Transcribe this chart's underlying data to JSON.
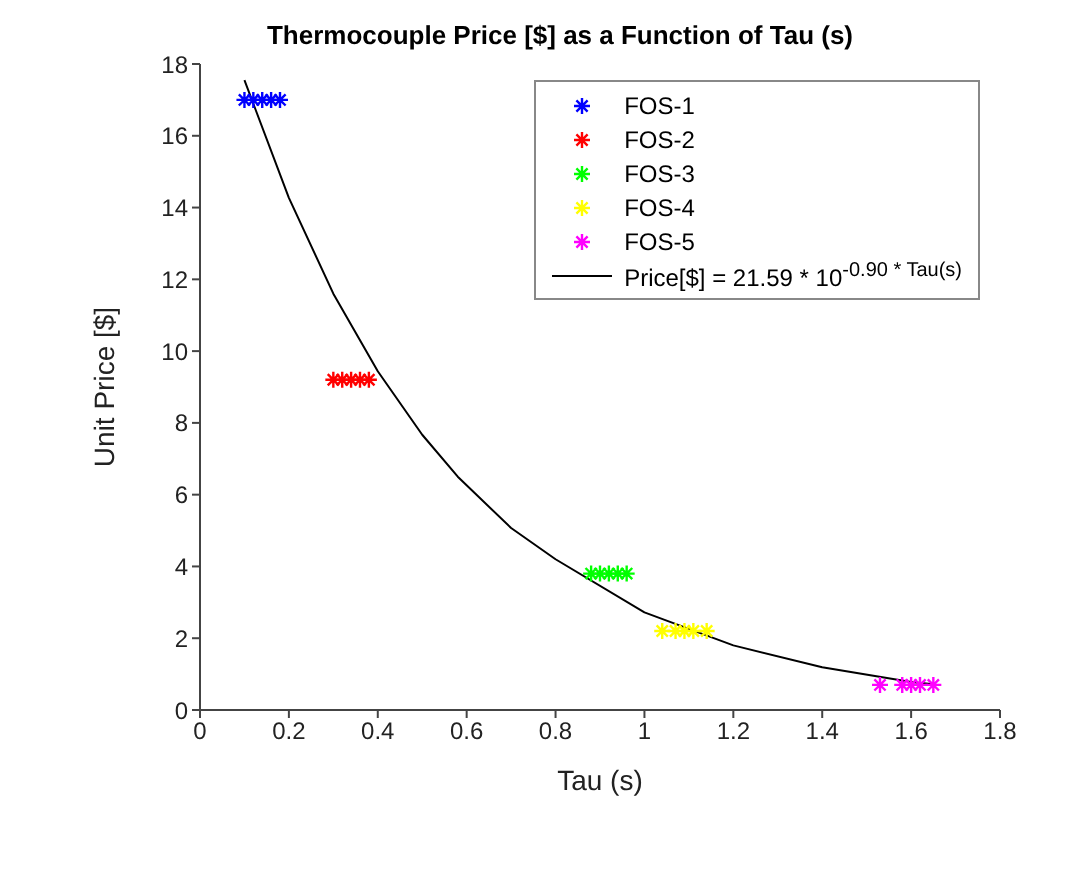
{
  "chart_data": {
    "type": "scatter",
    "title": "Thermocouple Price [$] as a Function of Tau (s)",
    "xlabel": "Tau (s)",
    "ylabel": "Unit Price [$]",
    "xlim": [
      0,
      1.8
    ],
    "xticks": [
      0,
      0.2,
      0.4,
      0.6,
      0.8,
      1,
      1.2,
      1.4,
      1.6,
      1.8
    ],
    "ylim": [
      0,
      18
    ],
    "yticks": [
      0,
      2,
      4,
      6,
      8,
      10,
      12,
      14,
      16,
      18
    ],
    "grid": false,
    "legend": "top right",
    "marker": "cross",
    "series": [
      {
        "name": "FOS-1",
        "color": "#0000ff",
        "x": [
          0.1,
          0.12,
          0.14,
          0.16,
          0.18
        ],
        "values": [
          17,
          17,
          17,
          17,
          17
        ]
      },
      {
        "name": "FOS-2",
        "color": "#ff0000",
        "x": [
          0.3,
          0.32,
          0.34,
          0.36,
          0.38
        ],
        "values": [
          9.2,
          9.2,
          9.2,
          9.2,
          9.2
        ]
      },
      {
        "name": "FOS-3",
        "color": "#00ff00",
        "x": [
          0.88,
          0.9,
          0.92,
          0.94,
          0.96
        ],
        "values": [
          3.8,
          3.8,
          3.8,
          3.8,
          3.8
        ]
      },
      {
        "name": "FOS-4",
        "color": "#ffff00",
        "x": [
          1.04,
          1.07,
          1.09,
          1.11,
          1.14
        ],
        "values": [
          2.2,
          2.2,
          2.2,
          2.2,
          2.2
        ]
      },
      {
        "name": "FOS-5",
        "color": "#ff00ff",
        "x": [
          1.53,
          1.58,
          1.6,
          1.62,
          1.65
        ],
        "values": [
          0.7,
          0.7,
          0.7,
          0.7,
          0.7
        ]
      },
      {
        "name": "Price[$] = 21.59 * 10$^{-0.90 * Tau(s)}$",
        "type": "line",
        "marker": "none",
        "color": "#000000",
        "x": [
          0.1,
          0.2,
          0.3,
          0.4,
          0.5,
          0.58,
          0.7,
          0.8,
          1,
          1.2,
          1.4,
          1.6,
          1.65
        ],
        "values": [
          17.55,
          14.27,
          11.6,
          9.44,
          7.67,
          6.5,
          5.07,
          4.2,
          2.72,
          1.8,
          1.19,
          0.78,
          0.72
        ]
      }
    ]
  }
}
